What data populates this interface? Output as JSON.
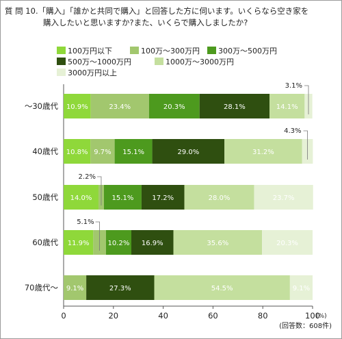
{
  "question": {
    "label": "質 問 10.",
    "line1": "「購入」「誰かと共同で購入」と回答した方に伺います。いくらなら空き家を",
    "line2": "購入したいと思いますか?また、いくらで購入しましたか?"
  },
  "colors": [
    "#8fd83a",
    "#a2c76e",
    "#4d9a1e",
    "#2f4f10",
    "#c4df9e",
    "#e6f1d6"
  ],
  "chart_data": {
    "type": "bar",
    "orientation": "horizontal",
    "stacked": true,
    "categories": [
      "～30歳代",
      "40歳代",
      "50歳代",
      "60歳代",
      "70歳代～"
    ],
    "series": [
      {
        "name": "100万円以下",
        "values": [
          10.9,
          10.8,
          14.0,
          11.9,
          0
        ]
      },
      {
        "name": "100万～300万円",
        "values": [
          23.4,
          9.7,
          2.2,
          5.1,
          9.1
        ]
      },
      {
        "name": "300万～500万円",
        "values": [
          20.3,
          15.1,
          15.1,
          10.2,
          0
        ]
      },
      {
        "name": "500万～1000万円",
        "values": [
          28.1,
          29.0,
          17.2,
          16.9,
          27.3
        ]
      },
      {
        "name": "1000万～3000万円",
        "values": [
          14.1,
          31.2,
          28.0,
          35.6,
          54.5
        ]
      },
      {
        "name": "3000万円以上",
        "values": [
          3.1,
          4.3,
          23.7,
          20.3,
          9.1
        ]
      }
    ],
    "data_labels": [
      [
        "10.9%",
        "23.4%",
        "20.3%",
        "28.1%",
        "14.1%",
        "3.1%"
      ],
      [
        "10.8%",
        "9.7%",
        "15.1%",
        "29.0%",
        "31.2%",
        "4.3%"
      ],
      [
        "14.0%",
        "2.2%",
        "15.1%",
        "17.2%",
        "28.0%",
        "23.7%"
      ],
      [
        "11.9%",
        "5.1%",
        "10.2%",
        "16.9%",
        "35.6%",
        "20.3%"
      ],
      [
        "",
        "9.1%",
        "",
        "27.3%",
        "54.5%",
        "9.1%"
      ]
    ],
    "callouts": [
      {
        "row": 0,
        "series": 5,
        "label": "3.1%"
      },
      {
        "row": 1,
        "series": 5,
        "label": "4.3%"
      },
      {
        "row": 2,
        "series": 1,
        "label": "2.2%"
      },
      {
        "row": 3,
        "series": 1,
        "label": "5.1%"
      }
    ],
    "xlim": [
      0,
      100
    ],
    "xticks": [
      0,
      20,
      40,
      60,
      80,
      100
    ],
    "xunit": "(%)",
    "note": "(回答数：608件)",
    "grid": false,
    "legend_position": "top"
  }
}
